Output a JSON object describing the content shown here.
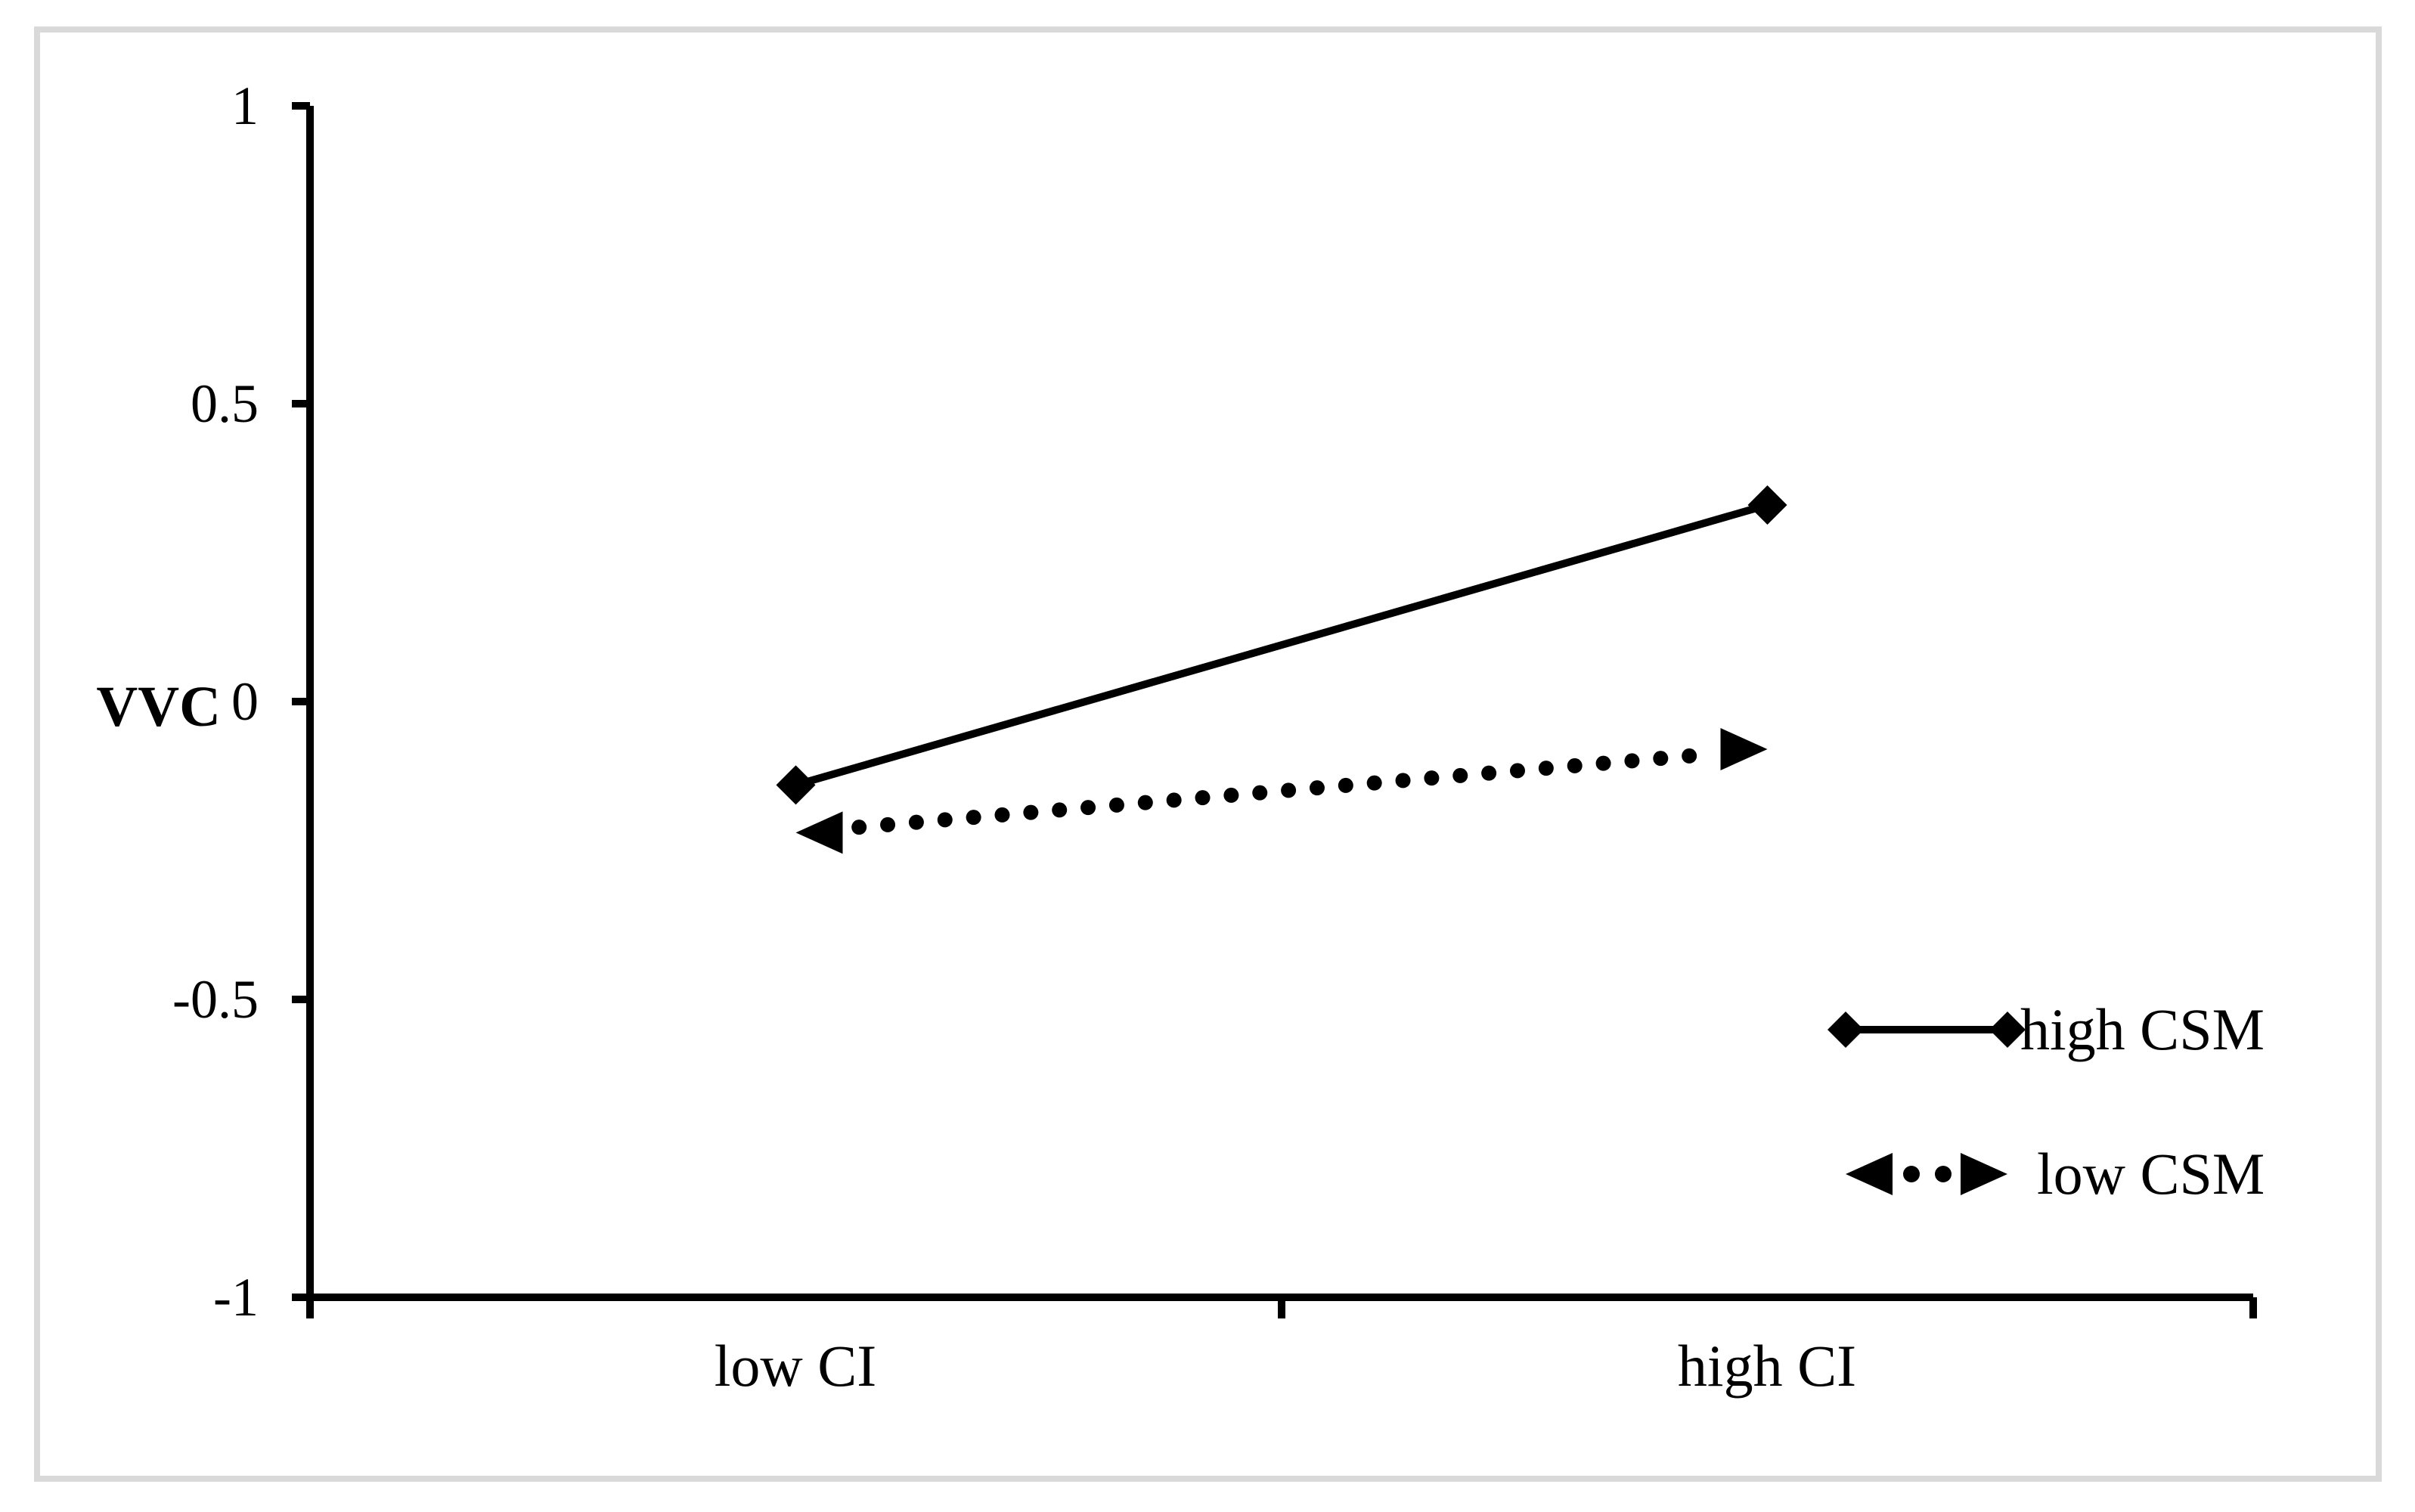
{
  "chart_data": {
    "type": "line",
    "categories": [
      "low CI",
      "high CI"
    ],
    "series": [
      {
        "name": "high CSM",
        "values": [
          -0.14,
          0.33
        ],
        "line_style": "solid",
        "marker": "diamond",
        "color": "#000000"
      },
      {
        "name": "low CSM",
        "values": [
          -0.22,
          -0.08
        ],
        "line_style": "dotted",
        "marker": "arrow",
        "color": "#000000"
      }
    ],
    "title": "",
    "xlabel": "",
    "ylabel": "VVC",
    "ylim": [
      -1,
      1
    ],
    "yticks": [
      1,
      0.5,
      0,
      -0.5,
      -1
    ],
    "ytick_labels": [
      "1",
      "0.5",
      "0",
      "-0.5",
      "-1"
    ],
    "grid": false,
    "legend_position": "right-middle",
    "colors": {
      "axis": "#000000",
      "series": "#000000",
      "frame_border": "#d9d9d9",
      "background": "#ffffff"
    }
  }
}
